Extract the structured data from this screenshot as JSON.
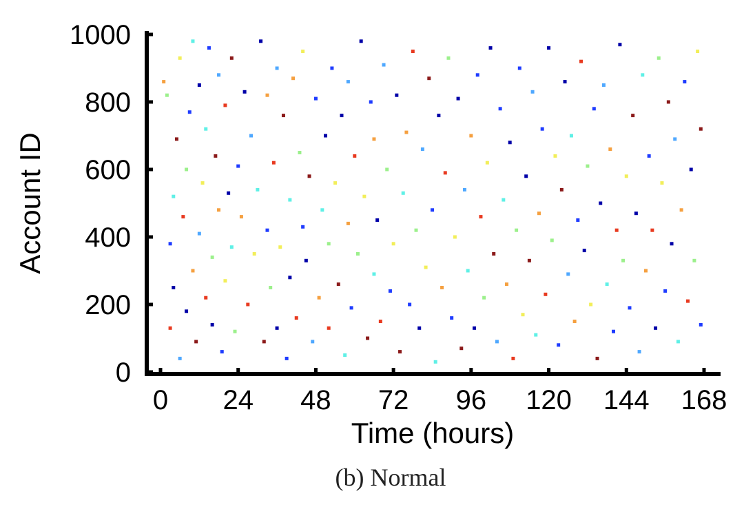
{
  "chart_data": {
    "type": "scatter",
    "title": "",
    "caption": "(b) Normal",
    "xlabel": "Time (hours)",
    "ylabel": "Account ID",
    "xlim": [
      -4,
      172
    ],
    "ylim": [
      0,
      1000
    ],
    "xticks": [
      0,
      24,
      48,
      72,
      96,
      120,
      144,
      168
    ],
    "yticks": [
      0,
      200,
      400,
      600,
      800,
      1000
    ],
    "xtick_labels": [
      "0",
      "24",
      "48",
      "72",
      "96",
      "120",
      "144",
      "168"
    ],
    "ytick_labels": [
      "0",
      "200",
      "400",
      "600",
      "800",
      "1000"
    ],
    "grid": false,
    "legend": "none",
    "colormap": [
      "#0000a8",
      "#1f3cff",
      "#4fa8ff",
      "#5ff0e6",
      "#9cf08c",
      "#f2ee5a",
      "#f5a040",
      "#e83a20",
      "#8b1a1a"
    ],
    "points_format": [
      "time_hours",
      "account_id",
      "color_index"
    ],
    "points": [
      [
        1,
        860,
        6
      ],
      [
        2,
        820,
        4
      ],
      [
        3,
        380,
        1
      ],
      [
        3,
        130,
        7
      ],
      [
        4,
        250,
        0
      ],
      [
        4,
        520,
        3
      ],
      [
        5,
        690,
        8
      ],
      [
        6,
        40,
        2
      ],
      [
        6,
        930,
        5
      ],
      [
        7,
        460,
        7
      ],
      [
        8,
        180,
        0
      ],
      [
        8,
        600,
        4
      ],
      [
        9,
        770,
        1
      ],
      [
        10,
        300,
        6
      ],
      [
        10,
        980,
        3
      ],
      [
        11,
        90,
        8
      ],
      [
        12,
        410,
        2
      ],
      [
        12,
        850,
        0
      ],
      [
        13,
        560,
        5
      ],
      [
        14,
        220,
        7
      ],
      [
        14,
        720,
        3
      ],
      [
        15,
        960,
        1
      ],
      [
        16,
        340,
        4
      ],
      [
        16,
        140,
        0
      ],
      [
        17,
        640,
        8
      ],
      [
        18,
        480,
        6
      ],
      [
        18,
        880,
        2
      ],
      [
        19,
        60,
        1
      ],
      [
        20,
        270,
        5
      ],
      [
        20,
        790,
        7
      ],
      [
        21,
        530,
        0
      ],
      [
        22,
        370,
        3
      ],
      [
        22,
        930,
        8
      ],
      [
        23,
        120,
        4
      ],
      [
        24,
        610,
        1
      ],
      [
        25,
        460,
        6
      ],
      [
        26,
        830,
        0
      ],
      [
        27,
        200,
        7
      ],
      [
        28,
        700,
        2
      ],
      [
        29,
        350,
        5
      ],
      [
        30,
        540,
        3
      ],
      [
        31,
        980,
        0
      ],
      [
        32,
        90,
        8
      ],
      [
        33,
        420,
        1
      ],
      [
        33,
        820,
        6
      ],
      [
        34,
        250,
        4
      ],
      [
        35,
        620,
        7
      ],
      [
        36,
        130,
        0
      ],
      [
        36,
        900,
        2
      ],
      [
        37,
        370,
        5
      ],
      [
        38,
        760,
        8
      ],
      [
        39,
        40,
        1
      ],
      [
        40,
        510,
        3
      ],
      [
        40,
        280,
        0
      ],
      [
        41,
        870,
        6
      ],
      [
        42,
        160,
        7
      ],
      [
        43,
        650,
        4
      ],
      [
        44,
        430,
        1
      ],
      [
        44,
        950,
        5
      ],
      [
        45,
        330,
        0
      ],
      [
        46,
        580,
        8
      ],
      [
        47,
        90,
        2
      ],
      [
        48,
        810,
        1
      ],
      [
        49,
        220,
        6
      ],
      [
        50,
        480,
        3
      ],
      [
        51,
        700,
        0
      ],
      [
        52,
        130,
        7
      ],
      [
        52,
        380,
        4
      ],
      [
        53,
        900,
        1
      ],
      [
        54,
        560,
        5
      ],
      [
        55,
        260,
        8
      ],
      [
        56,
        760,
        0
      ],
      [
        57,
        50,
        3
      ],
      [
        58,
        440,
        6
      ],
      [
        58,
        860,
        2
      ],
      [
        59,
        190,
        1
      ],
      [
        60,
        640,
        7
      ],
      [
        61,
        350,
        4
      ],
      [
        62,
        980,
        0
      ],
      [
        63,
        520,
        5
      ],
      [
        64,
        100,
        8
      ],
      [
        65,
        800,
        1
      ],
      [
        66,
        290,
        3
      ],
      [
        66,
        690,
        6
      ],
      [
        67,
        450,
        0
      ],
      [
        68,
        150,
        7
      ],
      [
        69,
        910,
        2
      ],
      [
        70,
        600,
        4
      ],
      [
        71,
        240,
        1
      ],
      [
        72,
        380,
        5
      ],
      [
        73,
        820,
        0
      ],
      [
        74,
        60,
        8
      ],
      [
        75,
        530,
        3
      ],
      [
        76,
        710,
        6
      ],
      [
        77,
        200,
        1
      ],
      [
        78,
        950,
        7
      ],
      [
        79,
        420,
        4
      ],
      [
        80,
        130,
        0
      ],
      [
        81,
        660,
        2
      ],
      [
        82,
        310,
        5
      ],
      [
        83,
        870,
        8
      ],
      [
        84,
        480,
        1
      ],
      [
        85,
        30,
        3
      ],
      [
        86,
        760,
        0
      ],
      [
        87,
        250,
        6
      ],
      [
        88,
        590,
        7
      ],
      [
        89,
        930,
        4
      ],
      [
        90,
        160,
        1
      ],
      [
        91,
        400,
        5
      ],
      [
        92,
        810,
        0
      ],
      [
        93,
        70,
        8
      ],
      [
        94,
        540,
        2
      ],
      [
        95,
        300,
        3
      ],
      [
        96,
        700,
        6
      ],
      [
        97,
        130,
        0
      ],
      [
        98,
        880,
        1
      ],
      [
        99,
        460,
        7
      ],
      [
        100,
        220,
        4
      ],
      [
        101,
        620,
        5
      ],
      [
        102,
        960,
        0
      ],
      [
        103,
        350,
        8
      ],
      [
        104,
        90,
        2
      ],
      [
        105,
        780,
        1
      ],
      [
        106,
        510,
        3
      ],
      [
        107,
        260,
        6
      ],
      [
        108,
        680,
        0
      ],
      [
        109,
        40,
        7
      ],
      [
        110,
        420,
        4
      ],
      [
        111,
        900,
        1
      ],
      [
        112,
        170,
        5
      ],
      [
        113,
        580,
        0
      ],
      [
        114,
        330,
        8
      ],
      [
        115,
        830,
        2
      ],
      [
        116,
        110,
        3
      ],
      [
        117,
        470,
        6
      ],
      [
        118,
        720,
        1
      ],
      [
        119,
        230,
        7
      ],
      [
        120,
        960,
        0
      ],
      [
        121,
        390,
        4
      ],
      [
        122,
        640,
        5
      ],
      [
        123,
        80,
        1
      ],
      [
        124,
        540,
        8
      ],
      [
        125,
        860,
        0
      ],
      [
        126,
        290,
        2
      ],
      [
        127,
        700,
        3
      ],
      [
        128,
        150,
        6
      ],
      [
        129,
        450,
        1
      ],
      [
        130,
        920,
        7
      ],
      [
        131,
        360,
        0
      ],
      [
        132,
        610,
        4
      ],
      [
        133,
        200,
        5
      ],
      [
        134,
        780,
        1
      ],
      [
        135,
        40,
        8
      ],
      [
        136,
        500,
        0
      ],
      [
        137,
        850,
        2
      ],
      [
        138,
        260,
        3
      ],
      [
        139,
        660,
        6
      ],
      [
        140,
        120,
        1
      ],
      [
        141,
        420,
        7
      ],
      [
        142,
        970,
        0
      ],
      [
        143,
        330,
        4
      ],
      [
        144,
        580,
        5
      ],
      [
        145,
        190,
        1
      ],
      [
        146,
        760,
        8
      ],
      [
        147,
        470,
        0
      ],
      [
        148,
        60,
        2
      ],
      [
        149,
        880,
        3
      ],
      [
        150,
        300,
        6
      ],
      [
        151,
        640,
        1
      ],
      [
        152,
        420,
        7
      ],
      [
        153,
        130,
        0
      ],
      [
        154,
        930,
        4
      ],
      [
        155,
        560,
        5
      ],
      [
        156,
        240,
        1
      ],
      [
        157,
        800,
        8
      ],
      [
        158,
        380,
        0
      ],
      [
        159,
        690,
        2
      ],
      [
        160,
        90,
        3
      ],
      [
        161,
        480,
        6
      ],
      [
        162,
        860,
        1
      ],
      [
        163,
        210,
        7
      ],
      [
        164,
        600,
        0
      ],
      [
        165,
        330,
        4
      ],
      [
        166,
        950,
        5
      ],
      [
        167,
        140,
        1
      ],
      [
        167,
        720,
        8
      ]
    ]
  }
}
